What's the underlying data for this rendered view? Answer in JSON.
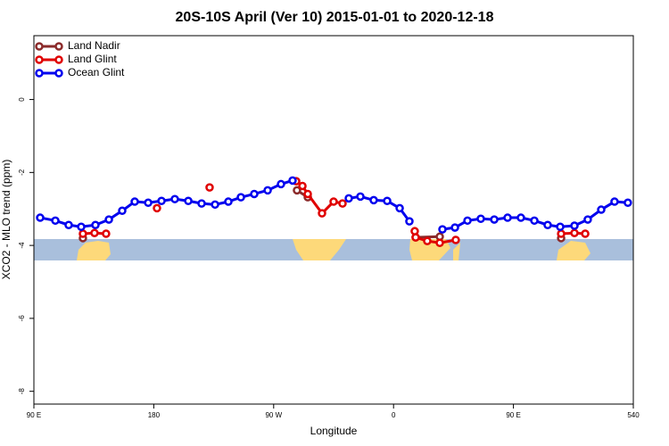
{
  "chart_data": {
    "type": "line",
    "title": "20S-10S April (Ver 10)   2015-01-01 to 2020-12-18",
    "x_label": "Longitude",
    "y_label": "XCO2 - MLO trend (ppm)",
    "xlim": [
      90,
      540
    ],
    "xticks": [
      {
        "value": 90,
        "label": "90 E"
      },
      180,
      {
        "value": 270,
        "label": "90 W"
      },
      {
        "value": 360,
        "label": "0"
      },
      {
        "value": 450,
        "label": "90 E"
      },
      540
    ],
    "ylim": [
      -8.35,
      1.75
    ],
    "yticks": [
      -8,
      -6,
      -4,
      -2,
      0
    ],
    "legend": "top-left",
    "series": [
      {
        "name": "Land Nadir",
        "color": "#8b2a2a",
        "x": [
          126.8,
          null,
          287.5,
          295.6,
          null,
          376.6,
          394.7,
          null,
          485.8
        ],
        "values": [
          -3.8,
          null,
          -2.49,
          -2.68,
          null,
          -3.78,
          -3.76,
          null,
          -3.8
        ]
      },
      {
        "name": "Land Glint",
        "color": "#e00000",
        "x": [
          126.8,
          135.5,
          144.2,
          null,
          182.4,
          null,
          221.9,
          null,
          286.9,
          291.6,
          295.6,
          306.3,
          315,
          321.7,
          null,
          375.9,
          376.6,
          385.3,
          394.7,
          406.7,
          null,
          485.8,
          495.8,
          503.9
        ],
        "values": [
          -3.68,
          -3.66,
          -3.68,
          null,
          -2.98,
          null,
          -2.41,
          null,
          -2.24,
          -2.37,
          -2.59,
          -3.12,
          -2.8,
          -2.85,
          null,
          -3.61,
          -3.78,
          -3.88,
          -3.93,
          -3.85,
          null,
          -3.68,
          -3.66,
          -3.68
        ]
      },
      {
        "name": "Ocean Glint",
        "color": "#0000ee",
        "x": [
          94.7,
          106.1,
          116.1,
          125.5,
          136.2,
          146.3,
          156.3,
          165.7,
          175.8,
          185.8,
          195.8,
          205.9,
          215.9,
          226,
          236,
          245.4,
          255.4,
          265.5,
          275.5,
          284.2,
          null,
          326.4,
          335.1,
          345.1,
          355.2,
          364.6,
          371.9,
          null,
          396.7,
          406.1,
          415.5,
          425.5,
          435.6,
          445.6,
          455.6,
          465.7,
          475.7,
          485.1,
          495.8,
          505.8,
          515.9,
          525.9,
          535.9
        ],
        "values": [
          -3.24,
          -3.32,
          -3.44,
          -3.49,
          -3.44,
          -3.29,
          -3.05,
          -2.8,
          -2.83,
          -2.78,
          -2.73,
          -2.78,
          -2.85,
          -2.88,
          -2.8,
          -2.68,
          -2.59,
          -2.49,
          -2.32,
          -2.22,
          null,
          -2.71,
          -2.66,
          -2.76,
          -2.78,
          -2.98,
          -3.34,
          null,
          -3.56,
          -3.51,
          -3.32,
          -3.27,
          -3.29,
          -3.24,
          -3.24,
          -3.32,
          -3.44,
          -3.49,
          -3.46,
          -3.29,
          -3.02,
          -2.8,
          -2.83
        ]
      }
    ]
  }
}
